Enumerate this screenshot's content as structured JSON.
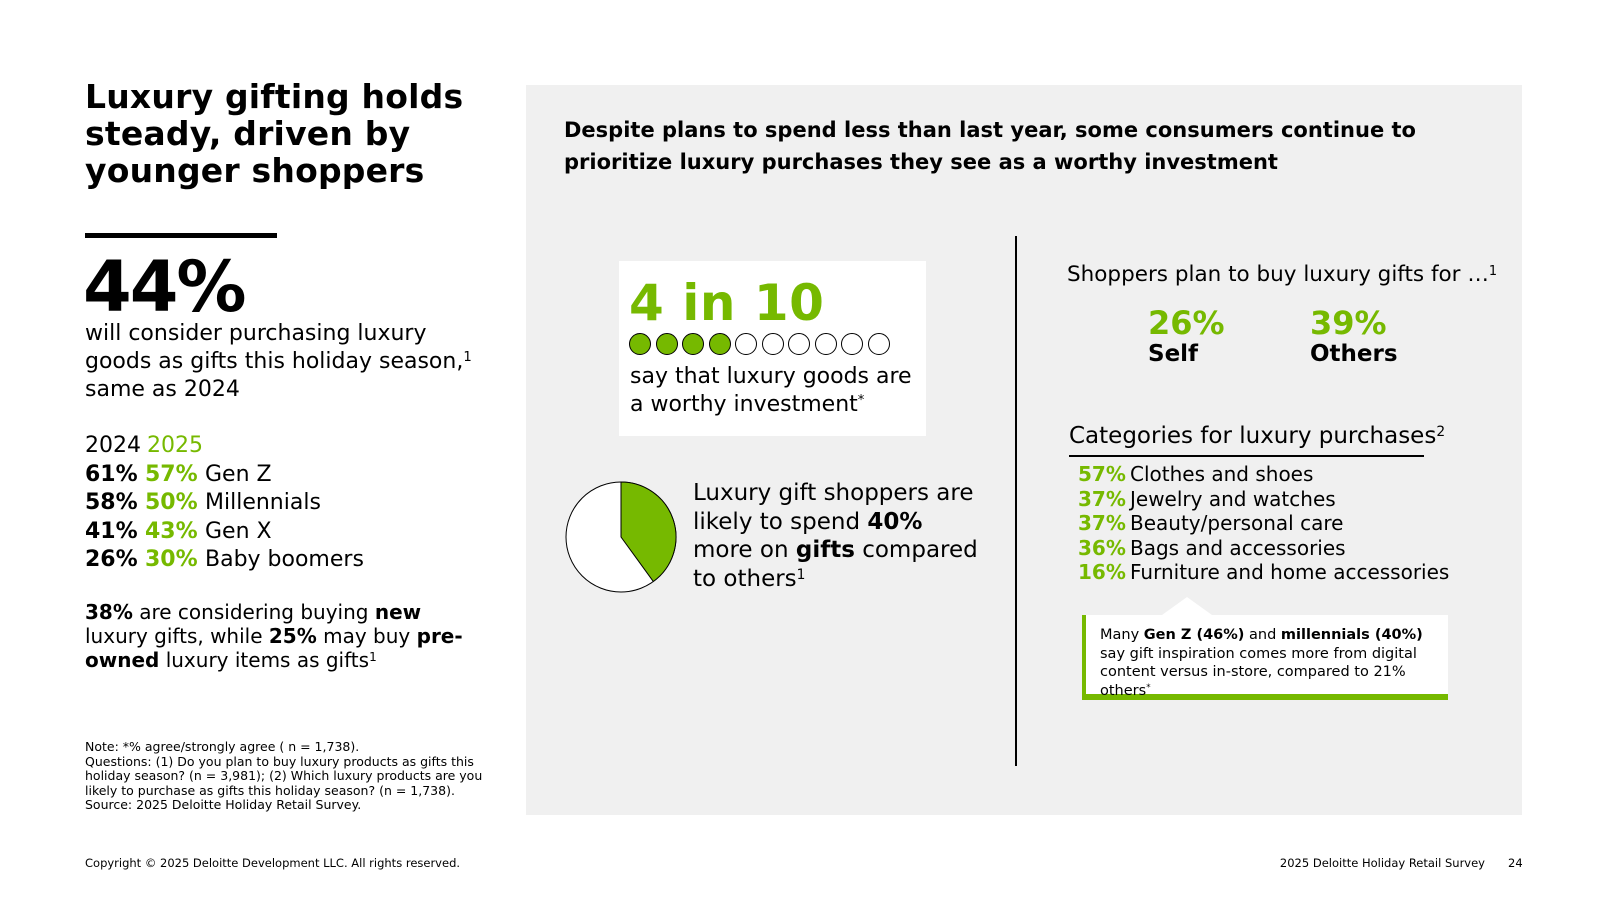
{
  "left": {
    "title": "Luxury gifting holds steady, driven by younger shoppers",
    "big_stat": "44%",
    "big_stat_desc_main": "will consider purchasing luxury goods as gifts this holiday season,",
    "big_stat_desc_sup": "1",
    "big_stat_desc_tail": "same as 2024",
    "table_headers": {
      "y2024": "2024",
      "y2025": "2025"
    },
    "generations": [
      {
        "v2024": "61%",
        "v2025": "57%",
        "label": "Gen Z"
      },
      {
        "v2024": "58%",
        "v2025": "50%",
        "label": "Millennials"
      },
      {
        "v2024": "41%",
        "v2025": "43%",
        "label": "Gen X"
      },
      {
        "v2024": "26%",
        "v2025": "30%",
        "label": "Baby boomers"
      }
    ],
    "new_pct": "38%",
    "new_text1": "are considering buying",
    "new_word": "new",
    "new_text2": "luxury gifts, while",
    "preowned_pct": "25%",
    "preowned_text1": "may buy",
    "preowned_word": "pre-owned",
    "preowned_text2": "luxury items as gifts",
    "preowned_sup": "1",
    "note_lines": [
      "Note: *% agree/strongly agree ( n = 1,738).",
      "Questions: (1) Do you plan to buy luxury products as gifts this holiday season? (n = 3,981); (2) Which luxury products are you likely to purchase as gifts this holiday season? (n = 1,738).",
      "Source: 2025 Deloitte Holiday Retail Survey."
    ]
  },
  "panel": {
    "headline": "Despite plans to spend less than last year, some consumers continue to prioritize luxury purchases they see as a worthy investment",
    "worthy": {
      "big": "4 in 10",
      "filled": 4,
      "total": 10,
      "text": "say that luxury goods are a worthy investment",
      "sup": "*"
    },
    "spend": {
      "text1": "Luxury gift shoppers are likely to spend",
      "pct": "40%",
      "text2": "more on",
      "word": "gifts",
      "text3": "compared to others",
      "sup": "1",
      "pie_fraction": 0.4
    },
    "plan": {
      "title": "Shoppers plan to buy luxury gifts for …",
      "title_sup": "1",
      "self_pct": "26%",
      "self_label": "Self",
      "others_pct": "39%",
      "others_label": "Others"
    },
    "categories": {
      "title": "Categories for luxury purchases",
      "title_sup": "2",
      "items": [
        {
          "pct": "57%",
          "label": "Clothes and shoes"
        },
        {
          "pct": "37%",
          "label": "Jewelry and watches"
        },
        {
          "pct": "37%",
          "label": "Beauty/personal care"
        },
        {
          "pct": "36%",
          "label": "Bags and accessories"
        },
        {
          "pct": "16%",
          "label": "Furniture and home accessories"
        }
      ]
    },
    "callout": {
      "t1": "Many",
      "genz": "Gen Z (46%)",
      "t2": "and",
      "mill": "millennials (40%)",
      "t3": "say gift inspiration comes more from digital content versus in-store, compared to 21% others",
      "sup": "*"
    }
  },
  "footer": {
    "copyright": "Copyright © 2025 Deloitte Development LLC. All rights reserved.",
    "survey": "2025 Deloitte Holiday Retail Survey",
    "page": "24"
  },
  "colors": {
    "accent": "#76b900",
    "panel_bg": "#f0f0f0"
  }
}
